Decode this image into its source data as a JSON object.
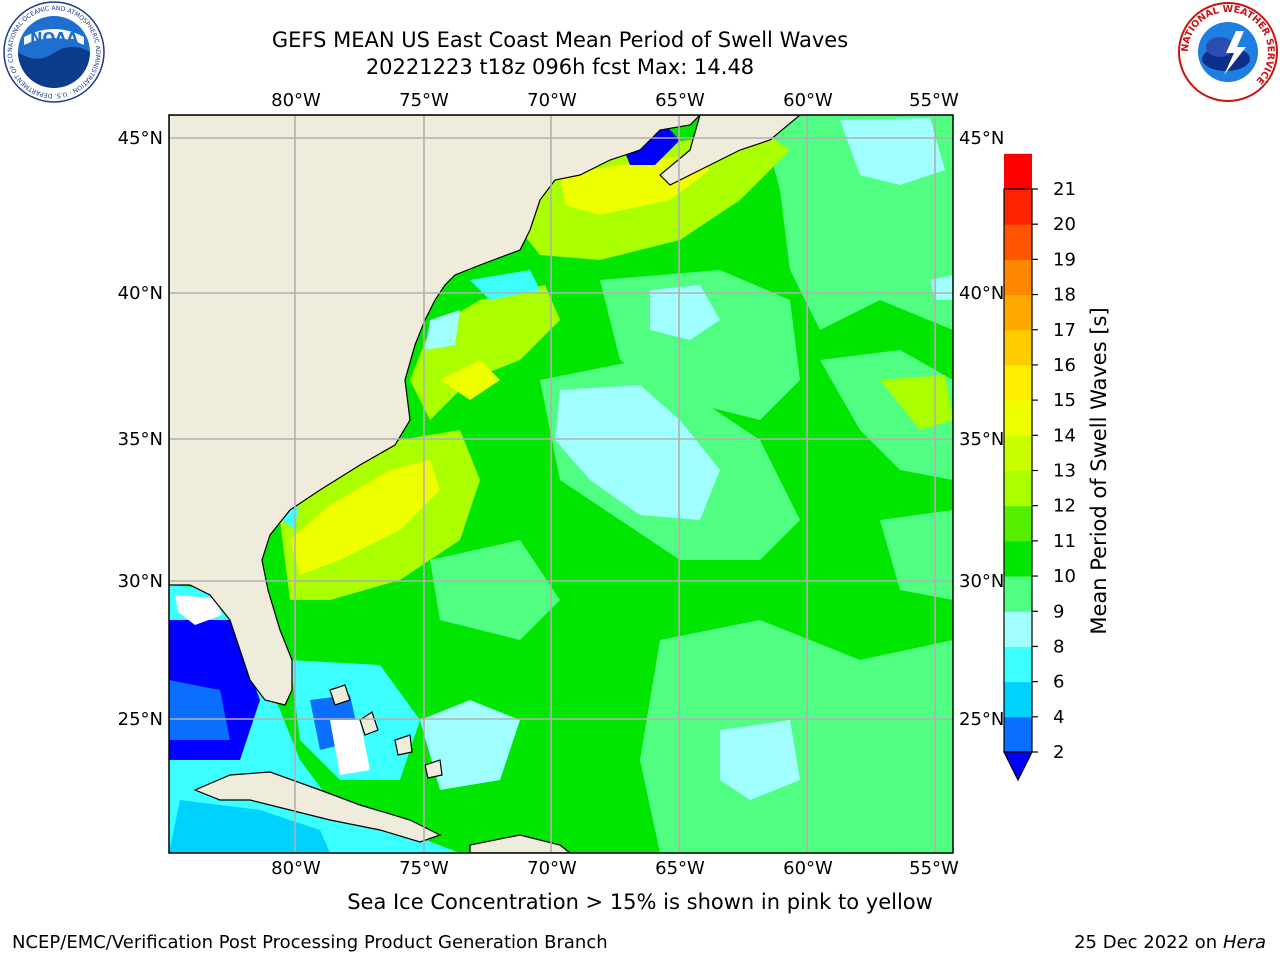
{
  "title": {
    "line1": "GEFS MEAN US East Coast Mean Period of Swell Waves",
    "line2": "20221223 t18z 096h fcst   Max: 14.48"
  },
  "map": {
    "lon_labels": [
      "80°W",
      "75°W",
      "70°W",
      "65°W",
      "60°W",
      "55°W"
    ],
    "lat_labels": [
      "45°N",
      "40°N",
      "35°N",
      "30°N",
      "25°N"
    ],
    "gridlines": true,
    "land_color": "#efecdc",
    "grid_color": "#b0b0b0"
  },
  "colorbar": {
    "label": "Mean Period of Swell Waves [s]",
    "ticks": [
      "2",
      "4",
      "6",
      "8",
      "9",
      "10",
      "11",
      "12",
      "13",
      "14",
      "15",
      "16",
      "17",
      "18",
      "19",
      "20",
      "21"
    ],
    "colors": [
      "#0a6eff",
      "#00d2ff",
      "#3cffff",
      "#a0ffff",
      "#50ff82",
      "#00e600",
      "#55f000",
      "#aaff00",
      "#c8ff00",
      "#eeff00",
      "#ffee00",
      "#ffcc00",
      "#ffaa00",
      "#ff8800",
      "#ff5500",
      "#ff2200",
      "#ff0000"
    ],
    "under_color": "#0000ff",
    "extend": "min"
  },
  "caption": "Sea Ice Concentration > 15% is shown in pink to yellow",
  "footer": {
    "left": "NCEP/EMC/Verification Post Processing Product Generation Branch",
    "right_date": "25 Dec 2022 on",
    "right_host": "Hera"
  },
  "logos": {
    "noaa": "NOAA",
    "noaa_ring": "NATIONAL OCEANIC AND ATMOSPHERIC ADMINISTRATION · U.S. DEPARTMENT OF COMMERCE",
    "nws_ring": "NATIONAL WEATHER SERVICE"
  }
}
